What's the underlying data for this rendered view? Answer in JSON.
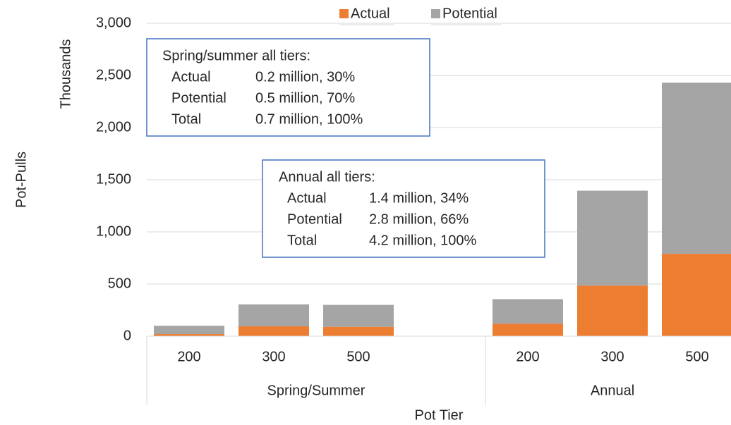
{
  "chart_data": {
    "type": "stacked_bar",
    "y_label": "Pot-Pulls",
    "y_unit_label": "Thousands",
    "x_label": "Pot Tier",
    "categories": [
      "200",
      "300",
      "500",
      null,
      "200",
      "300",
      "500"
    ],
    "groups": [
      {
        "label": "Spring/Summer",
        "count": 4
      },
      {
        "label": "Annual",
        "count": 3
      }
    ],
    "series": [
      {
        "name": "Actual",
        "color": "#ed7d31",
        "values": [
          20,
          95,
          90,
          null,
          120,
          485,
          790
        ]
      },
      {
        "name": "Potential",
        "color": "#a5a5a5",
        "values": [
          80,
          210,
          210,
          null,
          235,
          910,
          1640
        ]
      }
    ],
    "ylim": [
      0,
      3000
    ],
    "yticks": [
      0,
      500,
      {
        "value": 1000,
        "label": "1,000"
      },
      {
        "value": 1500,
        "label": "1,500"
      },
      {
        "value": 2000,
        "label": "2,000"
      },
      {
        "value": 2500,
        "label": "2,500"
      },
      {
        "value": 3000,
        "label": "3,000"
      }
    ],
    "grid": true,
    "legend": "top",
    "annotations": [
      {
        "title": "Spring/summer all tiers:",
        "rows": [
          [
            "Actual",
            "0.2 million, 30%"
          ],
          [
            "Potential",
            "0.5 million, 70%"
          ],
          [
            "Total",
            "0.7 million, 100%"
          ]
        ]
      },
      {
        "title": "Annual all tiers:",
        "rows": [
          [
            "Actual",
            "1.4 million, 34%"
          ],
          [
            "Potential",
            "2.8 million, 66%"
          ],
          [
            "Total",
            "4.2 million, 100%"
          ]
        ]
      }
    ]
  }
}
